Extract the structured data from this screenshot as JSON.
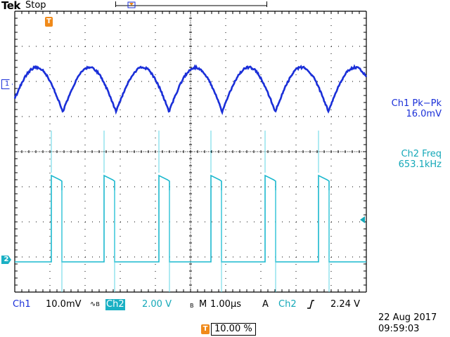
{
  "header": {
    "brand": "Tek",
    "status": "Stop"
  },
  "markers": {
    "trigger_position": "T",
    "ch1": "1",
    "ch2": "2"
  },
  "measurements": [
    {
      "title": "Ch1 Pk−Pk",
      "value": "16.0mV",
      "color": "#1a2fd8"
    },
    {
      "title": "Ch2 Freq",
      "value": "653.1kHz",
      "color": "#14a8b8"
    }
  ],
  "bottom_bar": {
    "ch1_label": "Ch1",
    "ch1_scale": "10.0mV",
    "ch2_label": "Ch2",
    "ch2_scale": "2.00 V",
    "bw_label": "B",
    "timebase_label": "M",
    "timebase": "1.00µs",
    "acq_mode": "A",
    "trigger_source": "Ch2",
    "trigger_slope_icon": "rising-edge-icon",
    "trigger_level": "2.24 V"
  },
  "datetime": {
    "date": "22 Aug 2017",
    "time": "09:59:03"
  },
  "trigger_position": {
    "icon": "T",
    "value": "10.00 %"
  },
  "colors": {
    "ch1": "#1a2fd8",
    "ch2": "#14a8b8",
    "trigger": "#f08a1a"
  }
}
